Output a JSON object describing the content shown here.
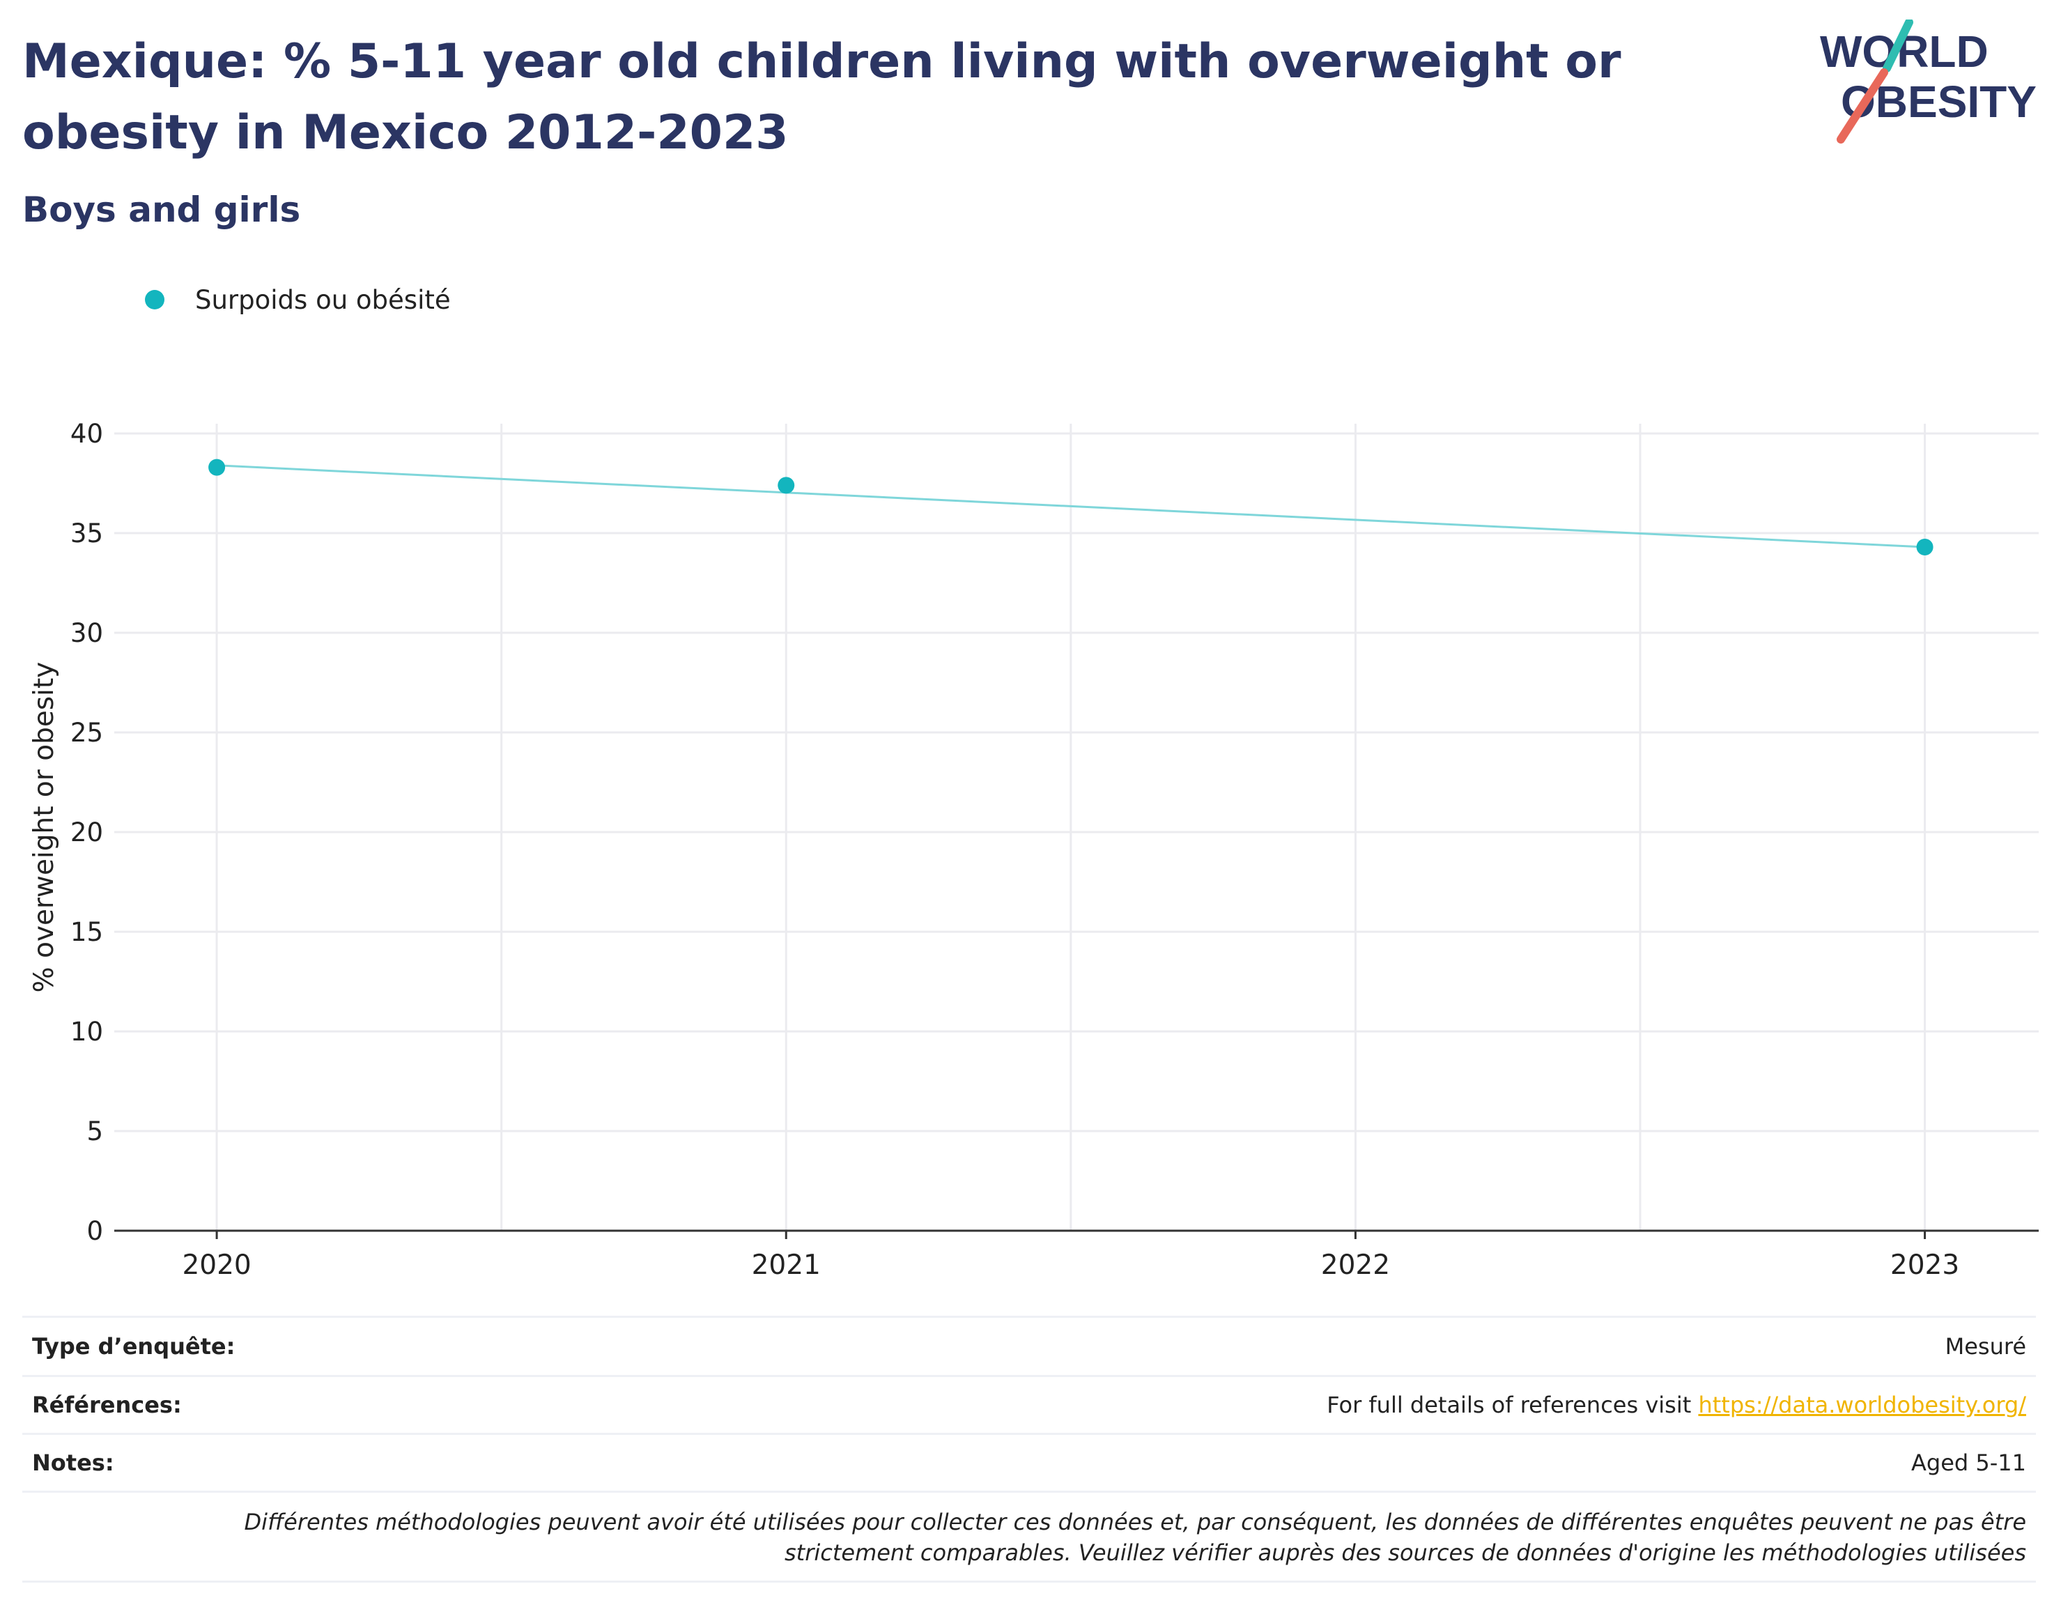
{
  "header": {
    "title": "Mexique: % 5-11 year old children living with overweight or obesity in Mexico 2012-2023",
    "subtitle": "Boys and girls"
  },
  "logo": {
    "line1": "WORLD",
    "line2": "OBESITY"
  },
  "colors": {
    "title": "#2b3563",
    "series_point": "#13b5be",
    "series_line": "#7fd6da",
    "link": "#f0b400",
    "grid": "#ebebef",
    "logo_teal": "#2ebdb1",
    "logo_coral": "#e8685a"
  },
  "chart_data": {
    "type": "line",
    "title": "",
    "xlabel": "",
    "ylabel": "% overweight or obesity",
    "x": [
      2020,
      2021,
      2023
    ],
    "xticks": [
      "2020",
      "2021",
      "2022",
      "2023"
    ],
    "xlim": [
      2019.82,
      2023.2
    ],
    "ylim": [
      0,
      40
    ],
    "yticks": [
      0,
      5,
      10,
      15,
      20,
      25,
      30,
      35,
      40
    ],
    "grid": true,
    "legend_position": "top-left",
    "series": [
      {
        "name": "Surpoids ou obésité",
        "values": [
          38.3,
          37.4,
          34.3
        ]
      }
    ],
    "trend_line": {
      "x": [
        2020,
        2023
      ],
      "y": [
        38.4,
        34.3
      ]
    }
  },
  "footer": {
    "survey_type": {
      "label": "Type d’enquête:",
      "value": "Mesuré"
    },
    "references": {
      "label": "Références:",
      "value": "For full details of references visit",
      "link": "https://data.worldobesity.org/"
    },
    "notes": {
      "label": "Notes:",
      "value": "Aged 5-11"
    },
    "disclaimer": "Différentes méthodologies peuvent avoir été utilisées pour collecter ces données et, par conséquent, les données de différentes enquêtes peuvent ne pas être strictement comparables. Veuillez vérifier auprès des sources de données d'origine les méthodologies utilisées"
  }
}
